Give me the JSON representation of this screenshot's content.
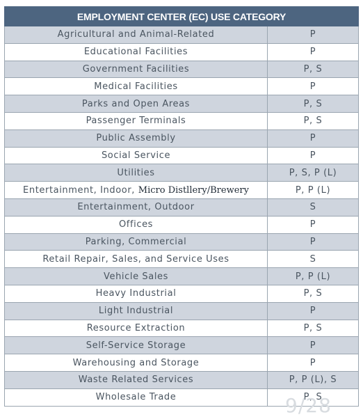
{
  "table": {
    "header": "EMPLOYMENT CENTER (EC) USE CATEGORY",
    "rows": [
      {
        "category": "Agricultural and Animal-Related",
        "permit": "P"
      },
      {
        "category": "Educational Facilities",
        "permit": "P"
      },
      {
        "category": "Government Facilities",
        "permit": "P, S"
      },
      {
        "category": "Medical Facilities",
        "permit": "P"
      },
      {
        "category": "Parks and Open Areas",
        "permit": "P, S"
      },
      {
        "category": "Passenger Terminals",
        "permit": "P, S"
      },
      {
        "category": "Public Assembly",
        "permit": "P"
      },
      {
        "category": "Social Service",
        "permit": "P"
      },
      {
        "category": "Utilities",
        "permit": "P, S, P (L)"
      },
      {
        "category": "Entertainment, Indoor, ",
        "category_extra": "Micro Distllery/Brewery",
        "permit": "P, P (L)"
      },
      {
        "category": "Entertainment, Outdoor",
        "permit": "S"
      },
      {
        "category": "Offices",
        "permit": "P"
      },
      {
        "category": "Parking, Commercial",
        "permit": "P"
      },
      {
        "category": "Retail Repair, Sales, and Service Uses",
        "permit": "S"
      },
      {
        "category": "Vehicle Sales",
        "permit": "P, P (L)"
      },
      {
        "category": "Heavy Industrial",
        "permit": "P, S"
      },
      {
        "category": "Light Industrial",
        "permit": "P"
      },
      {
        "category": "Resource Extraction",
        "permit": "P, S"
      },
      {
        "category": "Self-Service Storage",
        "permit": "P"
      },
      {
        "category": "Warehousing and Storage",
        "permit": "P"
      },
      {
        "category": "Waste Related Services",
        "permit": "P, P (L), S"
      },
      {
        "category": "Wholesale Trade",
        "permit": "P, S"
      }
    ]
  },
  "page_indicator": "9/28",
  "colors": {
    "header_bg": "#4d6580",
    "shaded_row": "#cfd5de",
    "border": "#9aa5b0"
  }
}
